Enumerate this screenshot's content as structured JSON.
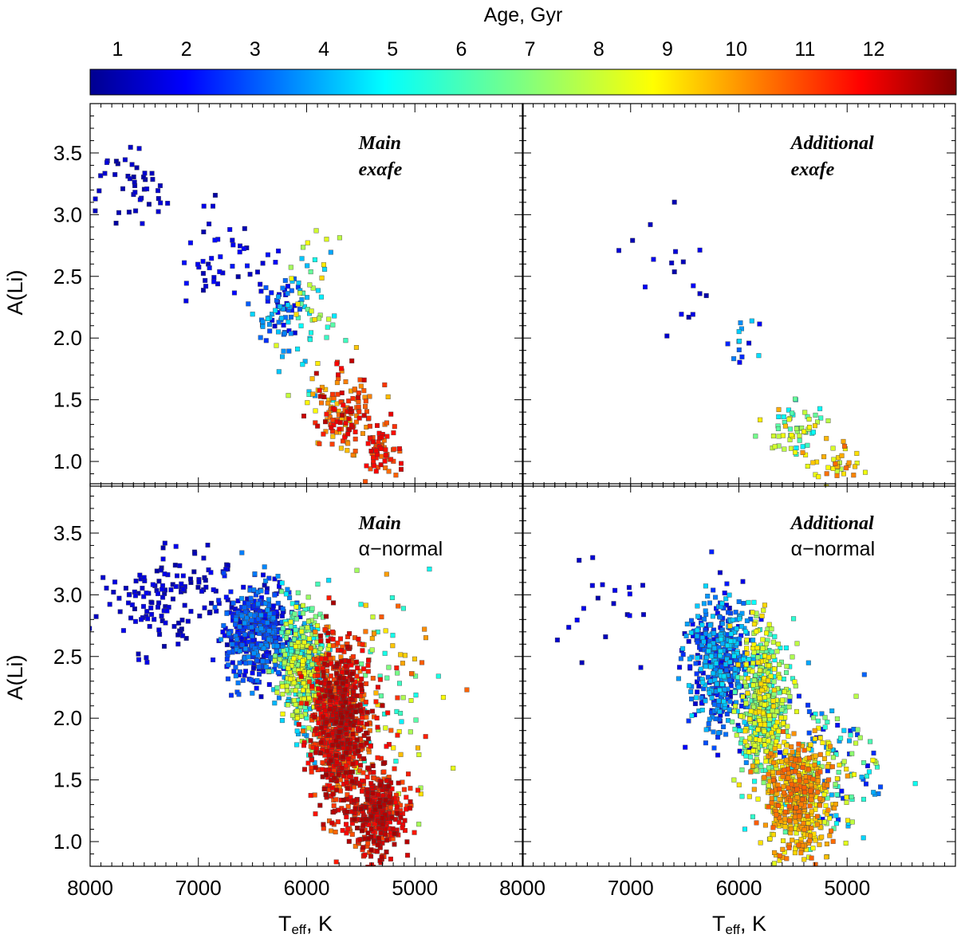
{
  "chart_data": {
    "type": "scatter",
    "colorbar": {
      "title": "Age, Gyr",
      "ticks": [
        "1",
        "2",
        "3",
        "4",
        "5",
        "6",
        "7",
        "8",
        "9",
        "10",
        "11",
        "12"
      ],
      "range": [
        0.6,
        13.2
      ],
      "colormap": "jet"
    },
    "shared_axes": {
      "xlabel_main": "T",
      "xlabel_sub": "eff",
      "xlabel_rest": ", K",
      "ylabel": "A(Li)",
      "xlim": [
        8000,
        4000
      ],
      "ylim": [
        0.8,
        3.9
      ],
      "xticks": [
        "8000",
        "7000",
        "6000",
        "5000"
      ],
      "yticks": [
        "1.0",
        "1.5",
        "2.0",
        "2.5",
        "3.0",
        "3.5"
      ]
    },
    "panels": [
      {
        "id": "top-left",
        "label_line1": "Main",
        "label_line2": "exαfe",
        "description": "Main sample, alpha-enhanced stars",
        "clusters": [
          {
            "teff": [
              7300,
              8000
            ],
            "ali": [
              2.9,
              3.6
            ],
            "age": [
              1.0,
              1.8
            ],
            "n": 45
          },
          {
            "teff": [
              6300,
              7200
            ],
            "ali": [
              2.3,
              3.0
            ],
            "age": [
              1.0,
              2.5
            ],
            "n": 45
          },
          {
            "teff": [
              6000,
              6500
            ],
            "ali": [
              1.9,
              2.6
            ],
            "age": [
              1.5,
              5.0
            ],
            "n": 70
          },
          {
            "teff": [
              5700,
              6200
            ],
            "ali": [
              1.6,
              2.9
            ],
            "age": [
              4.0,
              9.0
            ],
            "n": 60
          },
          {
            "teff": [
              5400,
              5950
            ],
            "ali": [
              1.1,
              1.7
            ],
            "age": [
              9.0,
              12.5
            ],
            "n": 140
          },
          {
            "teff": [
              5100,
              5500
            ],
            "ali": [
              0.85,
              1.3
            ],
            "age": [
              10.0,
              12.3
            ],
            "n": 60
          }
        ]
      },
      {
        "id": "top-right",
        "label_line1": "Additional",
        "label_line2": "exαfe",
        "description": "Additional sample, alpha-enhanced stars",
        "clusters": [
          {
            "teff": [
              6200,
              7200
            ],
            "ali": [
              2.1,
              2.9
            ],
            "age": [
              1.0,
              2.2
            ],
            "n": 18
          },
          {
            "teff": [
              5750,
              6100
            ],
            "ali": [
              1.7,
              2.3
            ],
            "age": [
              1.5,
              5.0
            ],
            "n": 14
          },
          {
            "teff": [
              5200,
              5700
            ],
            "ali": [
              1.0,
              1.5
            ],
            "age": [
              5.0,
              9.5
            ],
            "n": 60
          },
          {
            "teff": [
              4900,
              5300
            ],
            "ali": [
              0.82,
              1.1
            ],
            "age": [
              7.5,
              10.5
            ],
            "n": 35
          }
        ]
      },
      {
        "id": "bottom-left",
        "label_line1": "Main",
        "label_line2": "α−normal",
        "description": "Main sample, alpha-normal stars",
        "clusters": [
          {
            "teff": [
              6600,
              7900
            ],
            "ali": [
              2.6,
              3.4
            ],
            "age": [
              1.0,
              2.0
            ],
            "n": 140
          },
          {
            "teff": [
              6100,
              6800
            ],
            "ali": [
              2.3,
              3.1
            ],
            "age": [
              1.2,
              4.0
            ],
            "n": 500
          },
          {
            "teff": [
              5800,
              6250
            ],
            "ali": [
              1.9,
              2.9
            ],
            "age": [
              4.0,
              8.5
            ],
            "n": 500
          },
          {
            "teff": [
              5450,
              5950
            ],
            "ali": [
              1.3,
              2.6
            ],
            "age": [
              10.0,
              12.8
            ],
            "n": 900
          },
          {
            "teff": [
              5100,
              5600
            ],
            "ali": [
              0.85,
              1.6
            ],
            "age": [
              10.5,
              12.8
            ],
            "n": 400
          },
          {
            "teff": [
              4800,
              5800
            ],
            "ali": [
              1.4,
              3.0
            ],
            "age": [
              5.0,
              11.5
            ],
            "n": 120
          }
        ]
      },
      {
        "id": "bottom-right",
        "label_line1": "Additional",
        "label_line2": "α−normal",
        "description": "Additional sample, alpha-normal stars",
        "clusters": [
          {
            "teff": [
              6800,
              7800
            ],
            "ali": [
              2.5,
              3.3
            ],
            "age": [
              1.0,
              2.2
            ],
            "n": 20
          },
          {
            "teff": [
              5900,
              6450
            ],
            "ali": [
              1.9,
              3.0
            ],
            "age": [
              1.5,
              5.0
            ],
            "n": 500
          },
          {
            "teff": [
              5550,
              6000
            ],
            "ali": [
              1.5,
              2.8
            ],
            "age": [
              5.0,
              9.0
            ],
            "n": 500
          },
          {
            "teff": [
              5150,
              5750
            ],
            "ali": [
              0.85,
              1.8
            ],
            "age": [
              8.0,
              10.5
            ],
            "n": 500
          },
          {
            "teff": [
              4700,
              5700
            ],
            "ali": [
              1.0,
              2.2
            ],
            "age": [
              2.0,
              9.0
            ],
            "n": 160
          }
        ]
      }
    ]
  }
}
